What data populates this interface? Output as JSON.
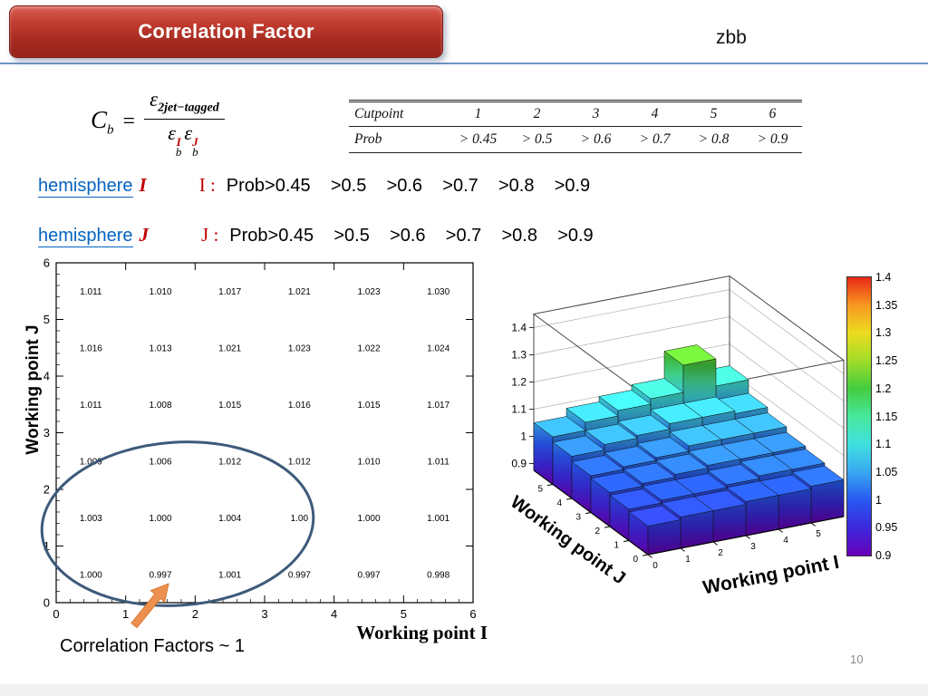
{
  "slide": {
    "title": "Correlation Factor",
    "corner_label": "zbb",
    "page_number": "10",
    "annotation_label": "Correlation Factors ~ 1"
  },
  "formula": {
    "lhs": "C",
    "lhs_sub": "b",
    "equals": "=",
    "num_symbol": "ε",
    "num_sub": "2jet−tagged",
    "den0_symbol": "ε",
    "den0_sup": "I",
    "den0_sub": "b",
    "den1_symbol": "ε",
    "den1_sup": "J",
    "den1_sub": "b"
  },
  "cut_table": {
    "header": [
      "Cutpoint",
      "1",
      "2",
      "3",
      "4",
      "5",
      "6"
    ],
    "prob_row": [
      "Prob",
      "> 0.45",
      "> 0.5",
      "> 0.6",
      "> 0.7",
      "> 0.8",
      "> 0.9"
    ]
  },
  "hemispheres": [
    {
      "link": "hemisphere",
      "letter": "I",
      "prefix": "I :",
      "values": "Prob>0.45    >0.5    >0.6    >0.7    >0.8    >0.9"
    },
    {
      "link": "hemisphere",
      "letter": "J",
      "prefix": "J :",
      "values": "Prob>0.45    >0.5    >0.6    >0.7    >0.8    >0.9"
    }
  ],
  "chart_data": [
    {
      "type": "heatmap",
      "title": "",
      "xlabel": "Working point I",
      "ylabel": "Working point J",
      "xlim": [
        0,
        6
      ],
      "ylim": [
        0,
        6
      ],
      "x_ticks": [
        0,
        1,
        2,
        3,
        4,
        5,
        6
      ],
      "y_ticks": [
        0,
        1,
        2,
        3,
        4,
        5,
        6
      ],
      "x_centers": [
        0.5,
        1.5,
        2.5,
        3.5,
        4.5,
        5.5
      ],
      "y_centers": [
        5.5,
        4.5,
        3.5,
        2.5,
        1.5,
        0.5
      ],
      "values": [
        [
          "1.011",
          "1.010",
          "1.017",
          "1.021",
          "1.023",
          "1.030"
        ],
        [
          "1.016",
          "1.013",
          "1.021",
          "1.023",
          "1.022",
          "1.024"
        ],
        [
          "1.011",
          "1.008",
          "1.015",
          "1.016",
          "1.015",
          "1.017"
        ],
        [
          "1.009",
          "1.006",
          "1.012",
          "1.012",
          "1.010",
          "1.011"
        ],
        [
          "1.003",
          "1.000",
          "1.004",
          "1.00",
          "1.000",
          "1.001"
        ],
        [
          "1.000",
          "0.997",
          "1.001",
          "0.997",
          "0.997",
          "0.998"
        ]
      ],
      "annotation": "ellipse around lower rows: correlation factors ~ 1"
    },
    {
      "type": "lego3d",
      "title": "",
      "xlabel": "Working point I",
      "ylabel": "Working point J",
      "zlim": [
        0.9,
        1.4
      ],
      "x_ticks": [
        "0",
        "1",
        "2",
        "3",
        "4",
        "5"
      ],
      "y_ticks": [
        "0",
        "1",
        "2",
        "3",
        "4",
        "5"
      ],
      "z_ticks": [
        "0.9",
        "1",
        "1.1",
        "1.2",
        "1.3",
        "1.4"
      ],
      "heights_note": "rows front J=0 to back J=5, columns I=0..5, approximate bin heights",
      "heights": [
        [
          0.98,
          0.99,
          0.99,
          1.0,
          1.0,
          1.01
        ],
        [
          0.99,
          1.0,
          1.0,
          1.01,
          1.02,
          1.02
        ],
        [
          1.0,
          1.01,
          1.02,
          1.03,
          1.03,
          1.03
        ],
        [
          1.01,
          1.02,
          1.03,
          1.05,
          1.05,
          1.05
        ],
        [
          1.03,
          1.05,
          1.06,
          1.08,
          1.08,
          1.07
        ],
        [
          1.05,
          1.08,
          1.1,
          1.12,
          1.22,
          1.12
        ]
      ]
    }
  ],
  "colorbar": {
    "ticks": [
      "1.4",
      "1.35",
      "1.3",
      "1.25",
      "1.2",
      "1.15",
      "1.1",
      "1.05",
      "1",
      "0.95",
      "0.9"
    ],
    "stops": [
      {
        "z": 0.9,
        "color": "#6a00b8"
      },
      {
        "z": 0.95,
        "color": "#3c28dc"
      },
      {
        "z": 1.0,
        "color": "#2858f0"
      },
      {
        "z": 1.05,
        "color": "#38a8f0"
      },
      {
        "z": 1.1,
        "color": "#40e0e0"
      },
      {
        "z": 1.15,
        "color": "#48e89c"
      },
      {
        "z": 1.2,
        "color": "#44cc40"
      },
      {
        "z": 1.25,
        "color": "#a0dc28"
      },
      {
        "z": 1.3,
        "color": "#ecdc20"
      },
      {
        "z": 1.35,
        "color": "#f89820"
      },
      {
        "z": 1.4,
        "color": "#e82818"
      }
    ]
  },
  "colors": {
    "banner_red": "#b03028",
    "link_blue": "#0563c1",
    "letter_red": "#c00000",
    "ellipse": "#3d5a7a",
    "arrow": "#ec9050",
    "divider_blue": "#6d94c4"
  }
}
